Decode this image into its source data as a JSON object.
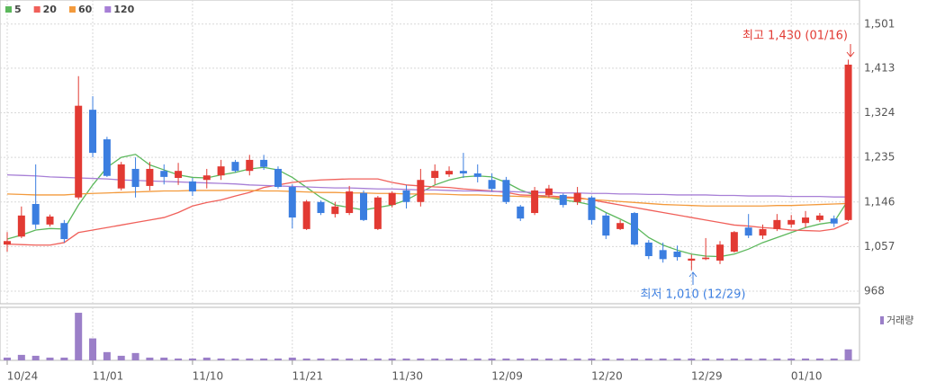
{
  "chart_data": {
    "type": "candlestick",
    "categories": [
      "10/24",
      null,
      null,
      null,
      null,
      null,
      "11/01",
      null,
      null,
      null,
      null,
      null,
      null,
      "11/10",
      null,
      null,
      null,
      null,
      null,
      null,
      "11/21",
      null,
      null,
      null,
      null,
      null,
      null,
      "11/30",
      null,
      null,
      null,
      null,
      null,
      null,
      "12/09",
      null,
      null,
      null,
      null,
      null,
      null,
      "12/20",
      null,
      null,
      null,
      null,
      null,
      null,
      "12/29",
      null,
      null,
      null,
      null,
      null,
      null,
      "01/10",
      null,
      null,
      null,
      null
    ],
    "open": [
      1061,
      1077,
      1142,
      1101,
      1104,
      1155,
      1330,
      1271,
      1173,
      1212,
      1178,
      1208,
      1194,
      1187,
      1190,
      1199,
      1226,
      1208,
      1230,
      1212,
      1176,
      1092,
      1146,
      1122,
      1124,
      1164,
      1092,
      1140,
      1169,
      1146,
      1194,
      1201,
      1208,
      1203,
      1190,
      1190,
      1137,
      1124,
      1160,
      1160,
      1146,
      1155,
      1119,
      1092,
      1124,
      1065,
      1050,
      1047,
      1029,
      1032,
      1029,
      1047,
      1095,
      1079,
      1092,
      1101,
      1104,
      1110,
      1113,
      1110
    ],
    "high": [
      1086,
      1137,
      1221,
      1121,
      1110,
      1397,
      1357,
      1276,
      1226,
      1235,
      1226,
      1221,
      1224,
      1194,
      1212,
      1230,
      1230,
      1240,
      1240,
      1217,
      1181,
      1150,
      1149,
      1146,
      1178,
      1169,
      1158,
      1167,
      1180,
      1212,
      1221,
      1217,
      1244,
      1221,
      1203,
      1196,
      1140,
      1176,
      1180,
      1163,
      1176,
      1158,
      1124,
      1110,
      1126,
      1070,
      1065,
      1059,
      1041,
      1074,
      1068,
      1088,
      1122,
      1101,
      1122,
      1120,
      1128,
      1124,
      1119,
      1430
    ],
    "low": [
      1047,
      1074,
      1092,
      1097,
      1065,
      1151,
      1235,
      1196,
      1169,
      1155,
      1169,
      1181,
      1180,
      1158,
      1173,
      1190,
      1205,
      1199,
      1210,
      1173,
      1093,
      1090,
      1120,
      1115,
      1120,
      1108,
      1090,
      1135,
      1133,
      1137,
      1181,
      1196,
      1194,
      1185,
      1167,
      1142,
      1108,
      1120,
      1155,
      1135,
      1140,
      1101,
      1072,
      1090,
      1059,
      1032,
      1025,
      1029,
      1010,
      1030,
      1022,
      1045,
      1074,
      1072,
      1088,
      1095,
      1095,
      1106,
      1096,
      1108
    ],
    "close": [
      1068,
      1119,
      1101,
      1117,
      1072,
      1338,
      1244,
      1198,
      1221,
      1176,
      1212,
      1196,
      1208,
      1167,
      1199,
      1217,
      1208,
      1230,
      1216,
      1176,
      1115,
      1147,
      1124,
      1137,
      1167,
      1110,
      1155,
      1164,
      1146,
      1190,
      1208,
      1208,
      1203,
      1196,
      1172,
      1146,
      1113,
      1169,
      1173,
      1140,
      1164,
      1110,
      1079,
      1104,
      1061,
      1038,
      1032,
      1036,
      1033,
      1035,
      1061,
      1086,
      1079,
      1092,
      1110,
      1110,
      1115,
      1119,
      1103,
      1420
    ],
    "up_color": "#e23a33",
    "down_color": "#3b7ee0",
    "series": [
      {
        "name": "5",
        "color": "#5cb85c",
        "values": [
          1072,
          1080,
          1090,
          1093,
          1092,
          1140,
          1180,
          1215,
          1235,
          1241,
          1220,
          1210,
          1200,
          1195,
          1194,
          1200,
          1205,
          1212,
          1215,
          1210,
          1195,
          1175,
          1155,
          1140,
          1135,
          1130,
          1135,
          1140,
          1150,
          1165,
          1180,
          1190,
          1196,
          1198,
          1196,
          1185,
          1170,
          1160,
          1155,
          1150,
          1146,
          1140,
          1125,
          1112,
          1098,
          1075,
          1060,
          1050,
          1042,
          1038,
          1037,
          1042,
          1052,
          1065,
          1075,
          1085,
          1095,
          1102,
          1106,
          1150
        ]
      },
      {
        "name": "20",
        "color": "#f0605a",
        "values": [
          1062,
          1061,
          1060,
          1060,
          1065,
          1085,
          1090,
          1095,
          1100,
          1105,
          1110,
          1115,
          1125,
          1138,
          1145,
          1150,
          1158,
          1165,
          1175,
          1180,
          1185,
          1188,
          1190,
          1191,
          1192,
          1192,
          1192,
          1185,
          1180,
          1178,
          1176,
          1175,
          1172,
          1170,
          1168,
          1165,
          1160,
          1159,
          1158,
          1156,
          1155,
          1150,
          1145,
          1140,
          1135,
          1130,
          1125,
          1120,
          1115,
          1110,
          1105,
          1100,
          1098,
          1095,
          1093,
          1090,
          1089,
          1088,
          1092,
          1105
        ]
      },
      {
        "name": "60",
        "color": "#f39a3c",
        "values": [
          1162,
          1161,
          1160,
          1160,
          1160,
          1162,
          1163,
          1164,
          1165,
          1166,
          1167,
          1168,
          1168,
          1169,
          1169,
          1169,
          1169,
          1169,
          1168,
          1168,
          1167,
          1166,
          1165,
          1165,
          1164,
          1164,
          1163,
          1163,
          1162,
          1162,
          1162,
          1161,
          1160,
          1160,
          1159,
          1158,
          1157,
          1156,
          1155,
          1154,
          1153,
          1151,
          1149,
          1147,
          1145,
          1143,
          1141,
          1140,
          1139,
          1138,
          1138,
          1138,
          1138,
          1138,
          1139,
          1139,
          1140,
          1141,
          1142,
          1143
        ]
      },
      {
        "name": "120",
        "color": "#a77fd6",
        "values": [
          1200,
          1199,
          1198,
          1196,
          1195,
          1194,
          1193,
          1192,
          1190,
          1189,
          1188,
          1187,
          1186,
          1185,
          1184,
          1183,
          1182,
          1180,
          1179,
          1178,
          1177,
          1176,
          1175,
          1174,
          1174,
          1173,
          1172,
          1172,
          1171,
          1170,
          1170,
          1169,
          1168,
          1168,
          1167,
          1167,
          1166,
          1165,
          1165,
          1164,
          1164,
          1163,
          1163,
          1162,
          1162,
          1161,
          1161,
          1160,
          1160,
          1160,
          1159,
          1159,
          1158,
          1158,
          1158,
          1157,
          1157,
          1157,
          1156,
          1156
        ]
      }
    ],
    "volume": {
      "name": "거래량",
      "color": "#9b7fc8",
      "ylim": [
        0,
        55
      ],
      "values": [
        3,
        6,
        5,
        3,
        3,
        52,
        24,
        9,
        5,
        8,
        3,
        3,
        2,
        2,
        3,
        2,
        2,
        2,
        2,
        2,
        3,
        2,
        2,
        2,
        2,
        2,
        2,
        2,
        2,
        2,
        2,
        2,
        2,
        2,
        2,
        2,
        2,
        2,
        2,
        2,
        2,
        2,
        2,
        2,
        2,
        2,
        2,
        2,
        2,
        2,
        2,
        2,
        2,
        2,
        2,
        2,
        2,
        2,
        2,
        12
      ]
    },
    "ylim": [
      943,
      1540
    ],
    "yticks": [
      {
        "value": 1501,
        "label": "1,501"
      },
      {
        "value": 1413,
        "label": "1,413"
      },
      {
        "value": 1324,
        "label": "1,324"
      },
      {
        "value": 1235,
        "label": "1,235"
      },
      {
        "value": 1146,
        "label": "1,146"
      },
      {
        "value": 1057,
        "label": "1,057"
      },
      968
    ],
    "grid": true,
    "annotations": {
      "high": "최고 1,430 (01/16)",
      "low": "최저 1,010 (12/29)"
    }
  }
}
